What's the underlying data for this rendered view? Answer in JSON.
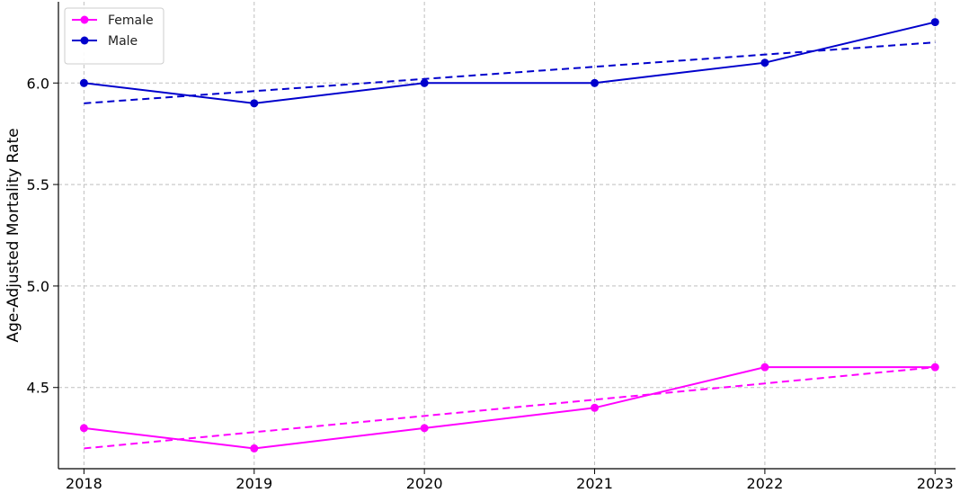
{
  "chart_data": {
    "type": "line",
    "title": "",
    "xlabel": "",
    "ylabel": "Age-Adjusted Mortality Rate",
    "x": [
      2018,
      2019,
      2020,
      2021,
      2022,
      2023
    ],
    "x_tick_labels": [
      "2018",
      "2019",
      "2020",
      "2021",
      "2022",
      "2023"
    ],
    "y_ticks": [
      4.5,
      5.0,
      5.5,
      6.0
    ],
    "y_tick_labels": [
      "4.5",
      "5.0",
      "5.5",
      "6.0"
    ],
    "xlim": [
      2017.85,
      2023.12
    ],
    "ylim": [
      4.1,
      6.4
    ],
    "grid": true,
    "legend_position": "top-left",
    "series": [
      {
        "name": "Female",
        "color": "#ff00ff",
        "values": [
          4.3,
          4.2,
          4.3,
          4.4,
          4.6,
          4.6
        ],
        "trend_values": [
          4.2,
          4.28,
          4.36,
          4.44,
          4.52,
          4.6
        ]
      },
      {
        "name": "Male",
        "color": "#0000cc",
        "values": [
          6.0,
          5.9,
          6.0,
          6.0,
          6.1,
          6.3
        ],
        "trend_values": [
          5.9,
          5.96,
          6.02,
          6.08,
          6.14,
          6.2
        ]
      }
    ]
  }
}
